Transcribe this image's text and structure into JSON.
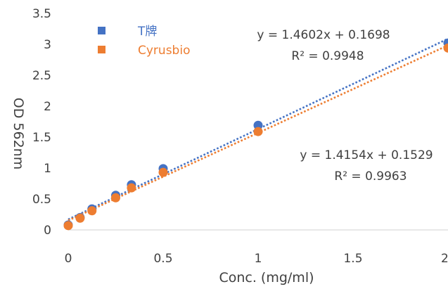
{
  "chart_data": {
    "type": "scatter",
    "xlabel": "Conc. (mg/ml)",
    "ylabel": "OD 562nm",
    "xlim": [
      0,
      2
    ],
    "ylim": [
      0,
      3.5
    ],
    "x_ticks": [
      "0",
      "0.5",
      "1",
      "1.5",
      "2"
    ],
    "y_ticks": [
      "0",
      "0.5",
      "1",
      "1.5",
      "2",
      "2.5",
      "3",
      "3.5"
    ],
    "grid": false,
    "legend_position": "top-left",
    "series": [
      {
        "name": "T牌",
        "color": "#4472C4",
        "marker": "circle",
        "x": [
          0,
          0.0625,
          0.125,
          0.25,
          0.333,
          0.5,
          1.0,
          2.0
        ],
        "y": [
          0.08,
          0.2,
          0.34,
          0.56,
          0.73,
          0.99,
          1.69,
          3.02
        ],
        "trendline": {
          "slope": 1.4602,
          "intercept": 0.1698,
          "style": "dotted",
          "equation": "y = 1.4602x + 0.1698",
          "r2": "R² = 0.9948"
        }
      },
      {
        "name": "Cyrusbio",
        "color": "#ED7D31",
        "marker": "circle",
        "x": [
          0,
          0.0625,
          0.125,
          0.25,
          0.333,
          0.5,
          1.0,
          2.0
        ],
        "y": [
          0.07,
          0.19,
          0.31,
          0.52,
          0.68,
          0.93,
          1.59,
          2.94
        ],
        "trendline": {
          "slope": 1.4154,
          "intercept": 0.1529,
          "style": "dotted",
          "equation": "y = 1.4154x + 0.1529",
          "r2": "R² = 0.9963"
        }
      }
    ]
  }
}
